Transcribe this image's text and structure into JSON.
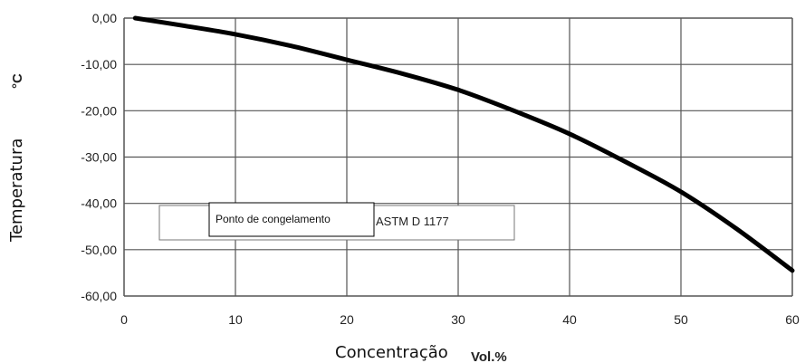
{
  "chart_data": {
    "type": "line",
    "xlabel": "Concentração",
    "xunit": "Vol.%",
    "ylabel": "Temperatura",
    "yunit": "°C",
    "xlim": [
      0,
      60
    ],
    "ylim": [
      -60,
      0
    ],
    "x_ticks": [
      "0",
      "10",
      "20",
      "30",
      "40",
      "50",
      "60"
    ],
    "y_ticks": [
      "0,00",
      "-10,00",
      "-20,00",
      "-30,00",
      "-40,00",
      "-50,00",
      "-60,00"
    ],
    "x_tick_values": [
      0,
      10,
      20,
      30,
      40,
      50,
      60
    ],
    "y_tick_values": [
      0,
      -10,
      -20,
      -30,
      -40,
      -50,
      -60
    ],
    "grid": true,
    "legend": {
      "label": "Ponto de congelamento",
      "suffix": "ASTM D 1177",
      "placement": "lower-left"
    },
    "series": [
      {
        "x": [
          1,
          5,
          10,
          15,
          20,
          25,
          30,
          35,
          40,
          45,
          50,
          55,
          60
        ],
        "y": [
          0,
          -1.5,
          -3.5,
          -6,
          -9,
          -12,
          -15.5,
          -20,
          -25,
          -31,
          -37.5,
          -45.5,
          -54.5
        ]
      }
    ]
  },
  "colors": {
    "line": "#000000",
    "grid": "#555555",
    "background": "#ffffff"
  }
}
